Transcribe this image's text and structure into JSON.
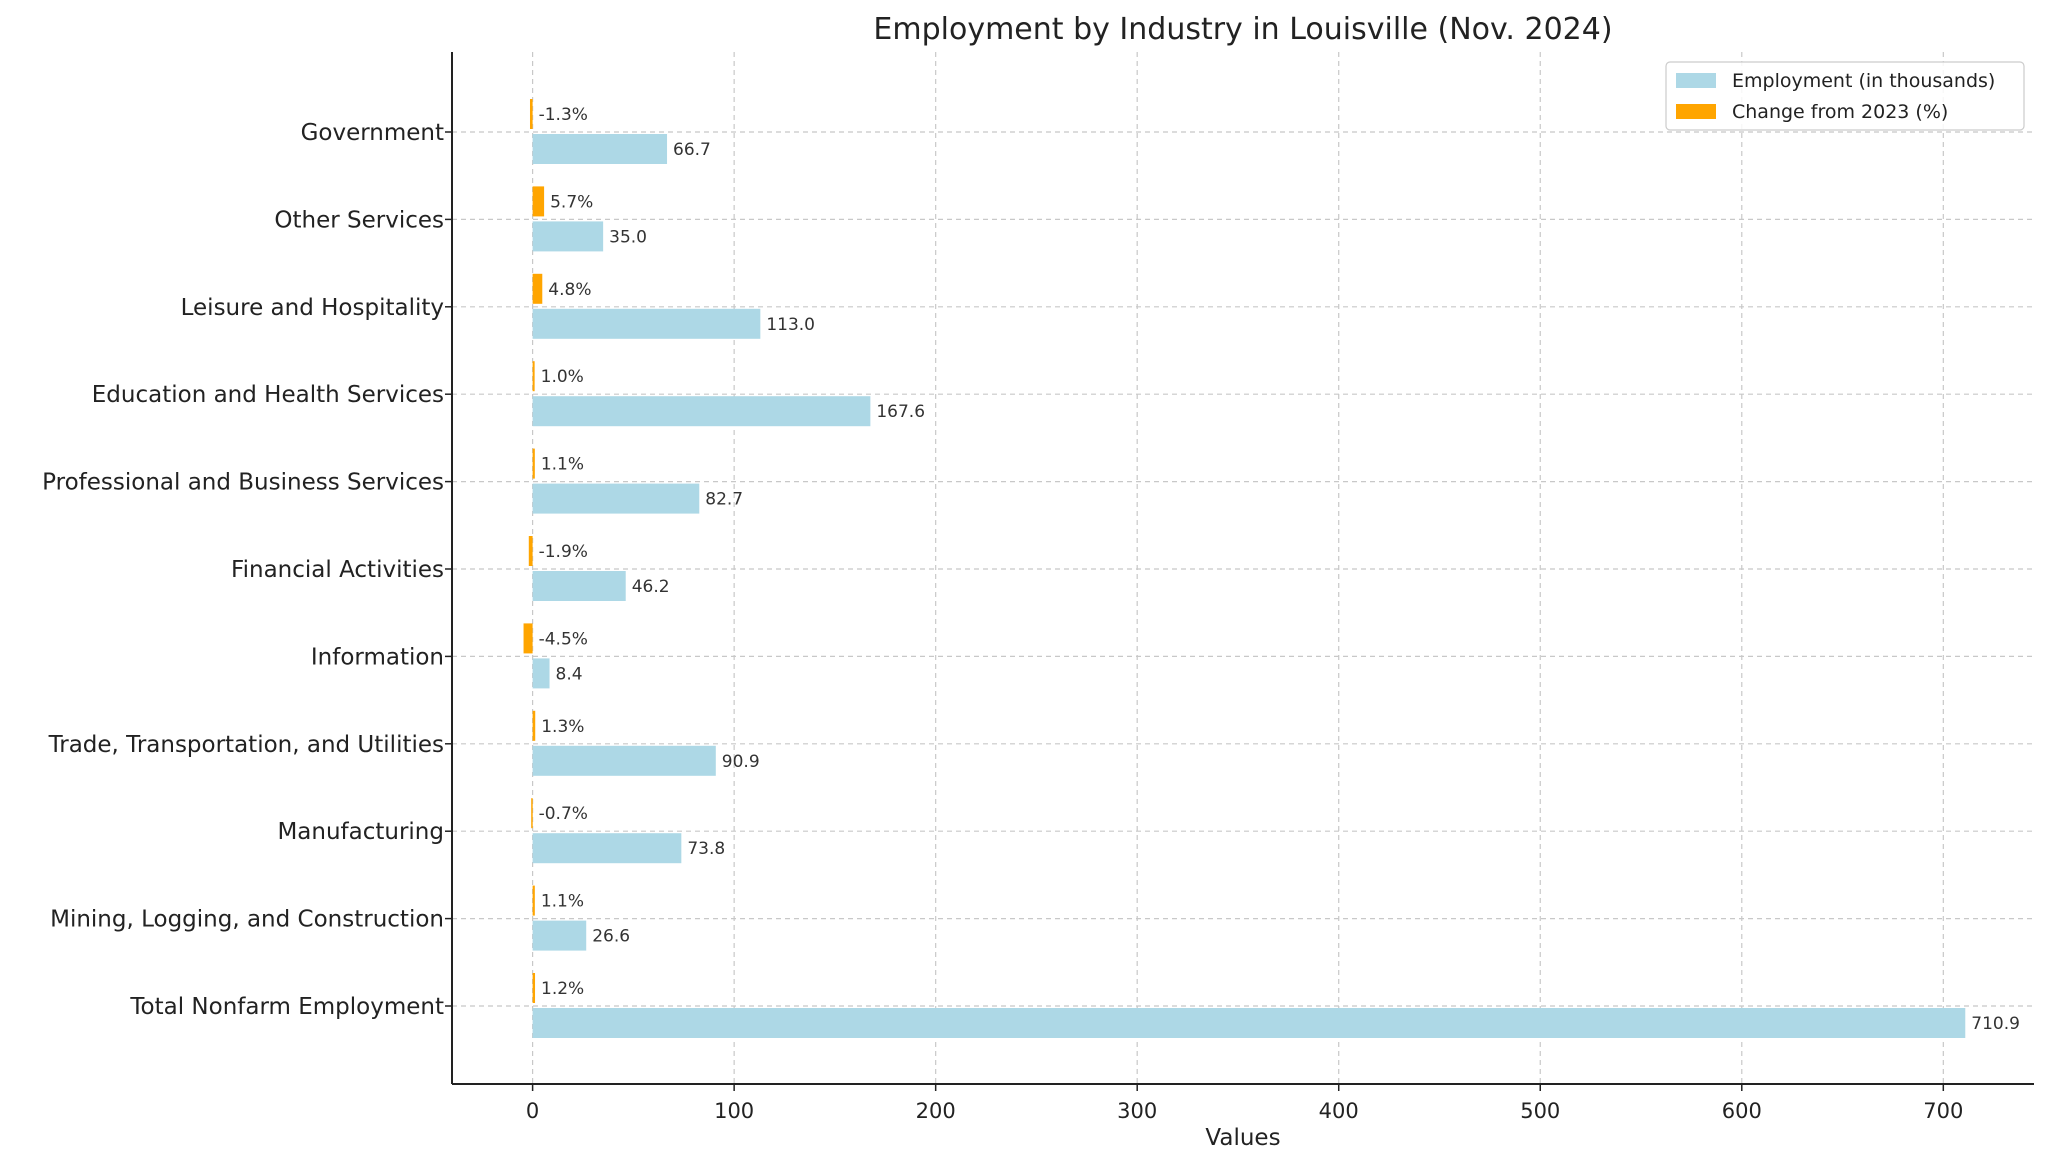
{
  "chart_data": {
    "type": "bar",
    "orientation": "horizontal",
    "title": "Employment by Industry in Louisville (Nov. 2024)",
    "xlabel": "Values",
    "ylabel": "",
    "xlim": [
      -40,
      745
    ],
    "xticks": [
      0,
      100,
      200,
      300,
      400,
      500,
      600,
      700
    ],
    "grid": true,
    "legend_position": "top-right",
    "categories": [
      "Total Nonfarm Employment",
      "Mining, Logging, and Construction",
      "Manufacturing",
      "Trade, Transportation, and Utilities",
      "Information",
      "Financial Activities",
      "Professional and Business Services",
      "Education and Health Services",
      "Leisure and Hospitality",
      "Other Services",
      "Government"
    ],
    "series": [
      {
        "name": "Employment (in thousands)",
        "color": "#add8e6",
        "values": [
          710.9,
          26.6,
          73.8,
          90.9,
          8.4,
          46.2,
          82.7,
          167.6,
          113.0,
          35.0,
          66.7
        ],
        "labels": [
          "710.9",
          "26.6",
          "73.8",
          "90.9",
          "8.4",
          "46.2",
          "82.7",
          "167.6",
          "113.0",
          "35.0",
          "66.7"
        ]
      },
      {
        "name": "Change from 2023 (%)",
        "color": "#ffa500",
        "values": [
          1.2,
          1.1,
          -0.7,
          1.3,
          -4.5,
          -1.9,
          1.1,
          1.0,
          4.8,
          5.7,
          -1.3
        ],
        "labels": [
          "1.2%",
          "1.1%",
          "-0.7%",
          "1.3%",
          "-4.5%",
          "-1.9%",
          "1.1%",
          "1.0%",
          "4.8%",
          "5.7%",
          "-1.3%"
        ]
      }
    ]
  }
}
